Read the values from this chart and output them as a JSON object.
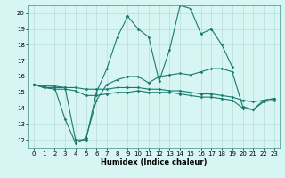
{
  "title": "",
  "xlabel": "Humidex (Indice chaleur)",
  "background_color": "#d6f5f3",
  "line_color": "#1a7a6e",
  "xlim": [
    -0.5,
    23.5
  ],
  "ylim": [
    11.5,
    20.5
  ],
  "yticks": [
    12,
    13,
    14,
    15,
    16,
    17,
    18,
    19,
    20
  ],
  "xticks": [
    0,
    1,
    2,
    3,
    4,
    5,
    6,
    7,
    8,
    9,
    10,
    11,
    12,
    13,
    14,
    15,
    16,
    17,
    18,
    19,
    20,
    21,
    22,
    23
  ],
  "series": [
    {
      "x": [
        0,
        1,
        2,
        3,
        4,
        5,
        6,
        7,
        8,
        9,
        10,
        11,
        12,
        13,
        14,
        15,
        16,
        17,
        18,
        19
      ],
      "y": [
        15.5,
        15.3,
        15.3,
        15.3,
        12.0,
        12.0,
        15.0,
        16.5,
        18.5,
        19.8,
        19.0,
        18.5,
        15.7,
        17.7,
        20.5,
        20.3,
        18.7,
        19.0,
        18.0,
        16.6
      ]
    },
    {
      "x": [
        0,
        1,
        2,
        3,
        4,
        5,
        6,
        7,
        8,
        9,
        10,
        11,
        12,
        13,
        14,
        15,
        16,
        17,
        18,
        19,
        20,
        21,
        22,
        23
      ],
      "y": [
        15.5,
        15.3,
        15.3,
        13.3,
        11.8,
        12.1,
        14.5,
        15.5,
        15.8,
        16.0,
        16.0,
        15.6,
        16.0,
        16.1,
        16.2,
        16.1,
        16.3,
        16.5,
        16.5,
        16.3,
        14.1,
        13.9,
        14.5,
        14.6
      ]
    },
    {
      "x": [
        0,
        1,
        2,
        3,
        4,
        5,
        6,
        7,
        8,
        9,
        10,
        11,
        12,
        13,
        14,
        15,
        16,
        17,
        18,
        19,
        20,
        21,
        22,
        23
      ],
      "y": [
        15.5,
        15.4,
        15.4,
        15.3,
        15.3,
        15.2,
        15.2,
        15.2,
        15.3,
        15.3,
        15.3,
        15.2,
        15.2,
        15.1,
        15.1,
        15.0,
        14.9,
        14.9,
        14.8,
        14.7,
        14.5,
        14.4,
        14.5,
        14.6
      ]
    },
    {
      "x": [
        0,
        1,
        2,
        3,
        4,
        5,
        6,
        7,
        8,
        9,
        10,
        11,
        12,
        13,
        14,
        15,
        16,
        17,
        18,
        19,
        20,
        21,
        22,
        23
      ],
      "y": [
        15.5,
        15.3,
        15.2,
        15.2,
        15.1,
        14.8,
        14.8,
        14.9,
        15.0,
        15.0,
        15.1,
        15.0,
        15.0,
        15.0,
        14.9,
        14.8,
        14.7,
        14.7,
        14.6,
        14.5,
        14.0,
        13.9,
        14.4,
        14.5
      ]
    }
  ]
}
